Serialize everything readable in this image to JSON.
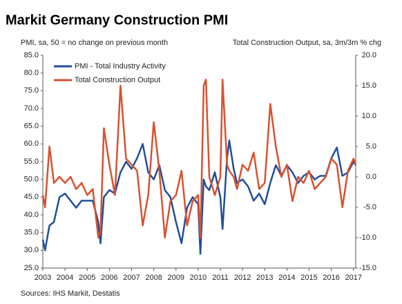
{
  "chart_data": {
    "type": "line",
    "title": "Markit Germany Construction PMI",
    "y_label": "PMI, sa, 50 = no change on previous month",
    "y2_label": "Total Construction Output, sa, 3m/3m % chg",
    "source": "Sources: IHS Markit, Destatis",
    "x": [
      2003.0,
      2003.1,
      2003.3,
      2003.5,
      2003.75,
      2004.0,
      2004.25,
      2004.5,
      2004.75,
      2005.0,
      2005.25,
      2005.5,
      2005.6,
      2005.75,
      2006.0,
      2006.25,
      2006.5,
      2006.75,
      2007.0,
      2007.25,
      2007.5,
      2007.75,
      2008.0,
      2008.25,
      2008.5,
      2008.75,
      2009.0,
      2009.25,
      2009.5,
      2009.75,
      2010.0,
      2010.1,
      2010.25,
      2010.35,
      2010.5,
      2010.75,
      2011.0,
      2011.1,
      2011.3,
      2011.4,
      2011.6,
      2011.75,
      2012.0,
      2012.25,
      2012.5,
      2012.75,
      2013.0,
      2013.25,
      2013.5,
      2013.75,
      2014.0,
      2014.25,
      2014.5,
      2014.75,
      2015.0,
      2015.25,
      2015.5,
      2015.75,
      2016.0,
      2016.25,
      2016.5,
      2016.75,
      2017.0,
      2017.1
    ],
    "series": [
      {
        "name": "PMI - Total Industry Activity",
        "color": "#1f4e99",
        "axis": "y",
        "values": [
          33,
          30,
          37,
          38,
          45,
          46,
          44,
          42,
          44,
          44,
          44,
          38,
          32,
          45,
          47,
          46,
          52,
          55,
          53,
          56,
          60,
          52,
          50,
          54,
          47,
          45,
          38,
          32,
          42,
          45,
          43,
          29,
          50,
          48,
          47,
          52,
          45,
          36,
          56,
          61,
          53,
          49,
          50,
          48,
          44,
          46,
          43,
          49,
          54,
          51,
          54,
          52,
          49,
          51,
          52,
          50,
          51,
          51,
          56,
          59,
          51,
          52,
          55,
          54
        ]
      },
      {
        "name": "Total Construction Output",
        "color": "#d9502f",
        "axis": "y2",
        "values": [
          -3,
          -5,
          5,
          -1,
          0,
          -1,
          0,
          -2,
          -1,
          -3,
          -2,
          -10,
          -9,
          8,
          2,
          -3,
          15,
          3,
          2,
          1,
          -8,
          -3,
          9,
          1,
          -10,
          -4,
          -3,
          1,
          -8,
          -4,
          -3,
          -10,
          15,
          16,
          0,
          -3,
          0,
          16,
          2,
          1,
          0,
          -2,
          2,
          1,
          4,
          -2,
          -1,
          12,
          5,
          0,
          2,
          -4,
          0,
          -1,
          1,
          -2,
          -1,
          0,
          3,
          2,
          -5,
          1,
          3,
          2
        ]
      }
    ],
    "xlim": [
      2003,
      2017.1
    ],
    "xticks": [
      2003,
      2004,
      2005,
      2006,
      2007,
      2008,
      2009,
      2010,
      2011,
      2012,
      2013,
      2014,
      2015,
      2016,
      2017
    ],
    "ylim": [
      25,
      85
    ],
    "yticks": [
      {
        "value": 25,
        "label": "25.0"
      },
      {
        "value": 30,
        "label": "30.0"
      },
      {
        "value": 35,
        "label": "35.0"
      },
      {
        "value": 40,
        "label": "40.0"
      },
      {
        "value": 45,
        "label": "45.0"
      },
      {
        "value": 50,
        "label": "50.0"
      },
      {
        "value": 55,
        "label": "55.0"
      },
      {
        "value": 60,
        "label": "60.0"
      },
      {
        "value": 65,
        "label": "65.0"
      },
      {
        "value": 70,
        "label": "70.0"
      },
      {
        "value": 75,
        "label": "75.0"
      },
      {
        "value": 80,
        "label": "80.0"
      },
      {
        "value": 85,
        "label": "85.0"
      }
    ],
    "y2lim": [
      -15,
      20
    ],
    "y2ticks": [
      {
        "value": -15,
        "label": "-15.0"
      },
      {
        "value": -10,
        "label": "-10.0"
      },
      {
        "value": -5,
        "label": "-5.0"
      },
      {
        "value": 0,
        "label": "0.0"
      },
      {
        "value": 5,
        "label": "5.0"
      },
      {
        "value": 10,
        "label": "10.0"
      },
      {
        "value": 15,
        "label": "15.0"
      },
      {
        "value": 20,
        "label": "20.0"
      }
    ],
    "legend": "top-left",
    "grid": false
  }
}
